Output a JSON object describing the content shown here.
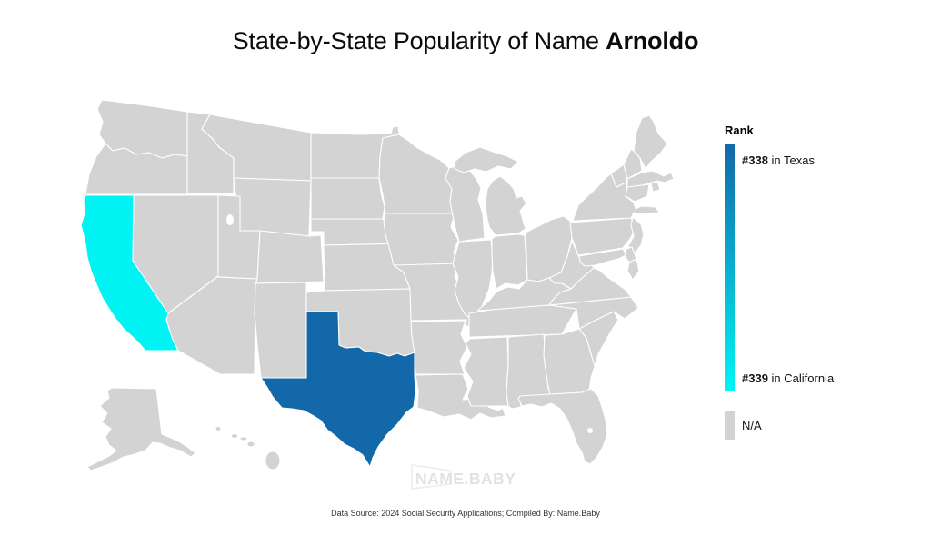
{
  "title": {
    "prefix": "State-by-State Popularity of Name ",
    "name": "Arnoldo"
  },
  "legend": {
    "header": "Rank",
    "top_label": {
      "rank": "#338",
      "rest": " in Texas"
    },
    "bottom_label": {
      "rank": "#339",
      "rest": " in California"
    },
    "na_label": "N/A"
  },
  "colors": {
    "rank_top": "#1268a8",
    "rank_bottom": "#00f4f4",
    "na": "#d3d3d3",
    "state_border": "#ffffff",
    "watermark": "#e2e2e2"
  },
  "map": {
    "default_color": "#d3d3d3",
    "highlighted": [
      {
        "code": "tx",
        "state": "Texas",
        "rank": 338,
        "color": "#1268a8"
      },
      {
        "code": "ca",
        "state": "California",
        "rank": 339,
        "color": "#00f4f4"
      }
    ]
  },
  "watermark": "NAME.BABY",
  "caption": "Data Source: 2024 Social Security Applications; Compiled By: Name.Baby",
  "chart_data": {
    "type": "heatmap",
    "subtype": "us-state-choropleth",
    "title": "State-by-State Popularity of Name Arnoldo",
    "legend_title": "Rank",
    "data": [
      {
        "state": "Texas",
        "rank": 338
      },
      {
        "state": "California",
        "rank": 339
      }
    ],
    "all_other_states": "N/A",
    "color_scale": {
      "best_rank": {
        "value": 338,
        "label": "#338 in Texas",
        "color": "#1268a8"
      },
      "worst_rank": {
        "value": 339,
        "label": "#339 in California",
        "color": "#00f4f4"
      },
      "na_color": "#d3d3d3"
    },
    "legend_position": "right",
    "annotations": [
      "NAME.BABY",
      "Data Source: 2024 Social Security Applications; Compiled By: Name.Baby"
    ]
  }
}
